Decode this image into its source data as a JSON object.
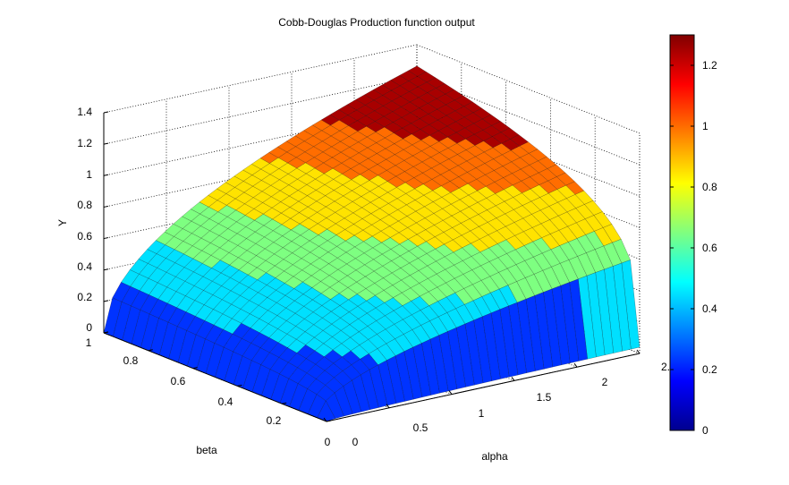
{
  "chart_data": {
    "type": "surface",
    "title": "Cobb-Douglas Production function output",
    "xlabel": "alpha",
    "ylabel": "beta",
    "zlabel": "Y",
    "x_ticks": [
      "0",
      "0.5",
      "1",
      "1.5",
      "2",
      "2."
    ],
    "y_ticks": [
      "0",
      "0.2",
      "0.4",
      "0.6",
      "0.8",
      "1"
    ],
    "z_ticks": [
      "0",
      "0.2",
      "0.4",
      "0.6",
      "0.8",
      "1",
      "1.2",
      "1.4"
    ],
    "colorbar_ticks": [
      "0",
      "0.2",
      "0.4",
      "0.6",
      "0.8",
      "1",
      "1.2"
    ],
    "xlim": [
      0,
      2.5
    ],
    "ylim": [
      0,
      1
    ],
    "zlim": [
      0,
      1.4
    ],
    "color_limits": [
      0,
      1.3
    ],
    "colormap": "jet",
    "grid": "on",
    "colorbar": "right",
    "surface": {
      "alpha": [
        0,
        0.25,
        0.5,
        0.75,
        1.0,
        1.25,
        1.5,
        1.75,
        2.0,
        2.25,
        2.5
      ],
      "beta": [
        0,
        0.125,
        0.25,
        0.375,
        0.5,
        0.625,
        0.75,
        0.875,
        1.0
      ],
      "output_levels": [
        0.28,
        0.5,
        0.7,
        0.9,
        1.05,
        1.3
      ]
    }
  }
}
